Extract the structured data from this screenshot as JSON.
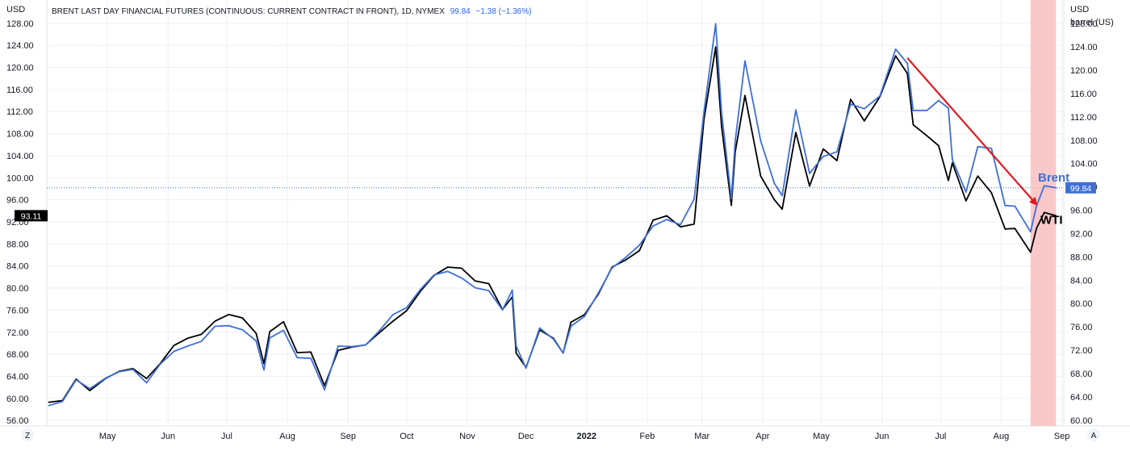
{
  "header": {
    "title": "BRENT LAST DAY FINANCIAL FUTURES (CONTINUOUS: CURRENT CONTRACT IN FRONT), 1D, NYMEX",
    "last": "99.84",
    "change": "−1.38 (−1.36%)"
  },
  "axes": {
    "left_unit": "USD",
    "right_unit_1": "USD",
    "right_unit_2": "barrel (US)",
    "left_ticks": [
      "128.00",
      "124.00",
      "120.00",
      "116.00",
      "112.00",
      "108.00",
      "104.00",
      "100.00",
      "96.00",
      "92.00",
      "88.00",
      "84.00",
      "80.00",
      "76.00",
      "72.00",
      "68.00",
      "64.00",
      "60.00",
      "56.00"
    ],
    "right_ticks": [
      "128.00",
      "124.00",
      "120.00",
      "116.00",
      "112.00",
      "108.00",
      "104.00",
      "100.00",
      "96.00",
      "92.00",
      "88.00",
      "84.00",
      "80.00",
      "76.00",
      "72.00",
      "68.00",
      "64.00",
      "60.00"
    ],
    "x_ticks": [
      "May",
      "Jun",
      "Jul",
      "Aug",
      "Sep",
      "Oct",
      "Nov",
      "Dec",
      "2022",
      "Feb",
      "Mar",
      "Apr",
      "May",
      "Jun",
      "Jul",
      "Aug",
      "Sep"
    ]
  },
  "badges": {
    "left_price": "93.11",
    "right_price": "99.84"
  },
  "corner_buttons": {
    "left": "Z",
    "right": "A"
  },
  "colors": {
    "brent": "#3f6fd6",
    "wti": "#000000",
    "trend_arrow": "#e0191f",
    "highlight": "#f7b7b7",
    "grid": "#eef0f3"
  },
  "chart_data": {
    "type": "line",
    "x_axis": "date",
    "left_ylim": [
      55,
      129
    ],
    "right_ylim": [
      59,
      129
    ],
    "grid": true,
    "series": [
      {
        "name": "Brent",
        "axis": "right",
        "points": [
          [
            "2021-04-01",
            62.5
          ],
          [
            "2021-04-08",
            63.2
          ],
          [
            "2021-04-15",
            66.9
          ],
          [
            "2021-04-22",
            65.4
          ],
          [
            "2021-04-30",
            67.2
          ],
          [
            "2021-05-07",
            68.3
          ],
          [
            "2021-05-14",
            68.7
          ],
          [
            "2021-05-21",
            66.4
          ],
          [
            "2021-05-28",
            69.6
          ],
          [
            "2021-06-04",
            71.8
          ],
          [
            "2021-06-11",
            72.7
          ],
          [
            "2021-06-18",
            73.5
          ],
          [
            "2021-06-25",
            76.1
          ],
          [
            "2021-07-02",
            76.2
          ],
          [
            "2021-07-09",
            75.5
          ],
          [
            "2021-07-16",
            73.6
          ],
          [
            "2021-07-20",
            68.6
          ],
          [
            "2021-07-23",
            74.1
          ],
          [
            "2021-07-30",
            75.4
          ],
          [
            "2021-08-06",
            70.7
          ],
          [
            "2021-08-13",
            70.6
          ],
          [
            "2021-08-20",
            65.2
          ],
          [
            "2021-08-27",
            72.7
          ],
          [
            "2021-09-03",
            72.6
          ],
          [
            "2021-09-10",
            72.9
          ],
          [
            "2021-09-17",
            75.3
          ],
          [
            "2021-09-24",
            78.1
          ],
          [
            "2021-10-01",
            79.3
          ],
          [
            "2021-10-08",
            82.4
          ],
          [
            "2021-10-15",
            84.9
          ],
          [
            "2021-10-22",
            85.5
          ],
          [
            "2021-10-29",
            84.4
          ],
          [
            "2021-11-05",
            82.7
          ],
          [
            "2021-11-12",
            82.2
          ],
          [
            "2021-11-19",
            78.9
          ],
          [
            "2021-11-24",
            82.3
          ],
          [
            "2021-11-26",
            72.7
          ],
          [
            "2021-12-01",
            68.9
          ],
          [
            "2021-12-08",
            75.8
          ],
          [
            "2021-12-15",
            73.9
          ],
          [
            "2021-12-20",
            71.5
          ],
          [
            "2021-12-24",
            76.1
          ],
          [
            "2021-12-31",
            77.8
          ],
          [
            "2022-01-07",
            81.8
          ],
          [
            "2022-01-14",
            86.1
          ],
          [
            "2022-01-21",
            87.9
          ],
          [
            "2022-01-28",
            90.0
          ],
          [
            "2022-02-04",
            93.3
          ],
          [
            "2022-02-11",
            94.4
          ],
          [
            "2022-02-18",
            93.5
          ],
          [
            "2022-02-25",
            97.9
          ],
          [
            "2022-03-02",
            112.9
          ],
          [
            "2022-03-08",
            127.98
          ],
          [
            "2022-03-11",
            112.7
          ],
          [
            "2022-03-16",
            98.0
          ],
          [
            "2022-03-18",
            107.9
          ],
          [
            "2022-03-23",
            121.6
          ],
          [
            "2022-03-31",
            107.9
          ],
          [
            "2022-04-07",
            100.6
          ],
          [
            "2022-04-11",
            98.5
          ],
          [
            "2022-04-18",
            113.2
          ],
          [
            "2022-04-25",
            102.3
          ],
          [
            "2022-05-02",
            105.2
          ],
          [
            "2022-05-09",
            106.0
          ],
          [
            "2022-05-16",
            114.2
          ],
          [
            "2022-05-23",
            113.4
          ],
          [
            "2022-05-31",
            115.6
          ],
          [
            "2022-06-08",
            123.6
          ],
          [
            "2022-06-14",
            121.2
          ],
          [
            "2022-06-17",
            113.1
          ],
          [
            "2022-06-24",
            113.1
          ],
          [
            "2022-06-30",
            114.8
          ],
          [
            "2022-07-05",
            113.5
          ],
          [
            "2022-07-07",
            104.7
          ],
          [
            "2022-07-14",
            99.1
          ],
          [
            "2022-07-20",
            106.9
          ],
          [
            "2022-07-27",
            106.6
          ],
          [
            "2022-08-03",
            96.8
          ],
          [
            "2022-08-08",
            96.7
          ],
          [
            "2022-08-16",
            92.3
          ],
          [
            "2022-08-19",
            96.7
          ],
          [
            "2022-08-23",
            100.2
          ],
          [
            "2022-08-29",
            99.84
          ]
        ]
      },
      {
        "name": "WTI",
        "axis": "left",
        "points": [
          [
            "2021-04-01",
            59.3
          ],
          [
            "2021-04-08",
            59.6
          ],
          [
            "2021-04-15",
            63.5
          ],
          [
            "2021-04-22",
            61.4
          ],
          [
            "2021-04-30",
            63.6
          ],
          [
            "2021-05-07",
            64.9
          ],
          [
            "2021-05-14",
            65.4
          ],
          [
            "2021-05-21",
            63.6
          ],
          [
            "2021-05-28",
            66.3
          ],
          [
            "2021-06-04",
            69.6
          ],
          [
            "2021-06-11",
            70.9
          ],
          [
            "2021-06-18",
            71.6
          ],
          [
            "2021-06-25",
            74.0
          ],
          [
            "2021-07-02",
            75.2
          ],
          [
            "2021-07-09",
            74.6
          ],
          [
            "2021-07-16",
            71.8
          ],
          [
            "2021-07-20",
            66.3
          ],
          [
            "2021-07-23",
            72.1
          ],
          [
            "2021-07-30",
            73.9
          ],
          [
            "2021-08-06",
            68.3
          ],
          [
            "2021-08-13",
            68.4
          ],
          [
            "2021-08-20",
            62.3
          ],
          [
            "2021-08-27",
            68.7
          ],
          [
            "2021-09-03",
            69.3
          ],
          [
            "2021-09-10",
            69.7
          ],
          [
            "2021-09-17",
            71.9
          ],
          [
            "2021-09-24",
            74.0
          ],
          [
            "2021-10-01",
            75.9
          ],
          [
            "2021-10-08",
            79.4
          ],
          [
            "2021-10-15",
            82.3
          ],
          [
            "2021-10-22",
            83.8
          ],
          [
            "2021-10-29",
            83.6
          ],
          [
            "2021-11-05",
            81.3
          ],
          [
            "2021-11-12",
            80.8
          ],
          [
            "2021-11-19",
            76.1
          ],
          [
            "2021-11-24",
            78.4
          ],
          [
            "2021-11-26",
            68.2
          ],
          [
            "2021-12-01",
            65.6
          ],
          [
            "2021-12-08",
            72.4
          ],
          [
            "2021-12-15",
            70.9
          ],
          [
            "2021-12-20",
            68.2
          ],
          [
            "2021-12-24",
            73.8
          ],
          [
            "2021-12-31",
            75.2
          ],
          [
            "2022-01-07",
            78.9
          ],
          [
            "2022-01-14",
            83.8
          ],
          [
            "2022-01-21",
            85.1
          ],
          [
            "2022-01-28",
            86.8
          ],
          [
            "2022-02-04",
            92.3
          ],
          [
            "2022-02-11",
            93.1
          ],
          [
            "2022-02-18",
            91.1
          ],
          [
            "2022-02-25",
            91.6
          ],
          [
            "2022-03-02",
            110.6
          ],
          [
            "2022-03-08",
            123.7
          ],
          [
            "2022-03-11",
            109.3
          ],
          [
            "2022-03-16",
            95.0
          ],
          [
            "2022-03-18",
            104.7
          ],
          [
            "2022-03-23",
            114.9
          ],
          [
            "2022-03-31",
            100.3
          ],
          [
            "2022-04-07",
            96.0
          ],
          [
            "2022-04-11",
            94.3
          ],
          [
            "2022-04-18",
            108.2
          ],
          [
            "2022-04-25",
            98.5
          ],
          [
            "2022-05-02",
            105.2
          ],
          [
            "2022-05-09",
            103.1
          ],
          [
            "2022-05-16",
            114.2
          ],
          [
            "2022-05-23",
            110.3
          ],
          [
            "2022-05-31",
            114.7
          ],
          [
            "2022-06-08",
            122.1
          ],
          [
            "2022-06-14",
            118.9
          ],
          [
            "2022-06-17",
            109.6
          ],
          [
            "2022-06-24",
            107.6
          ],
          [
            "2022-06-30",
            105.8
          ],
          [
            "2022-07-05",
            99.5
          ],
          [
            "2022-07-07",
            102.7
          ],
          [
            "2022-07-14",
            95.8
          ],
          [
            "2022-07-20",
            100.3
          ],
          [
            "2022-07-27",
            97.3
          ],
          [
            "2022-08-03",
            90.7
          ],
          [
            "2022-08-08",
            90.8
          ],
          [
            "2022-08-16",
            86.5
          ],
          [
            "2022-08-19",
            90.8
          ],
          [
            "2022-08-23",
            93.7
          ],
          [
            "2022-08-29",
            93.11
          ]
        ]
      }
    ],
    "annotations": [
      {
        "type": "arrow",
        "from": [
          "2022-06-14",
          122.1
        ],
        "to": [
          "2022-08-19",
          97.0
        ],
        "axis": "right"
      },
      {
        "type": "highlight",
        "from": "2022-08-16",
        "to": "2022-08-29"
      }
    ],
    "labels": {
      "brent": "Brent",
      "wti": "WTI"
    }
  }
}
